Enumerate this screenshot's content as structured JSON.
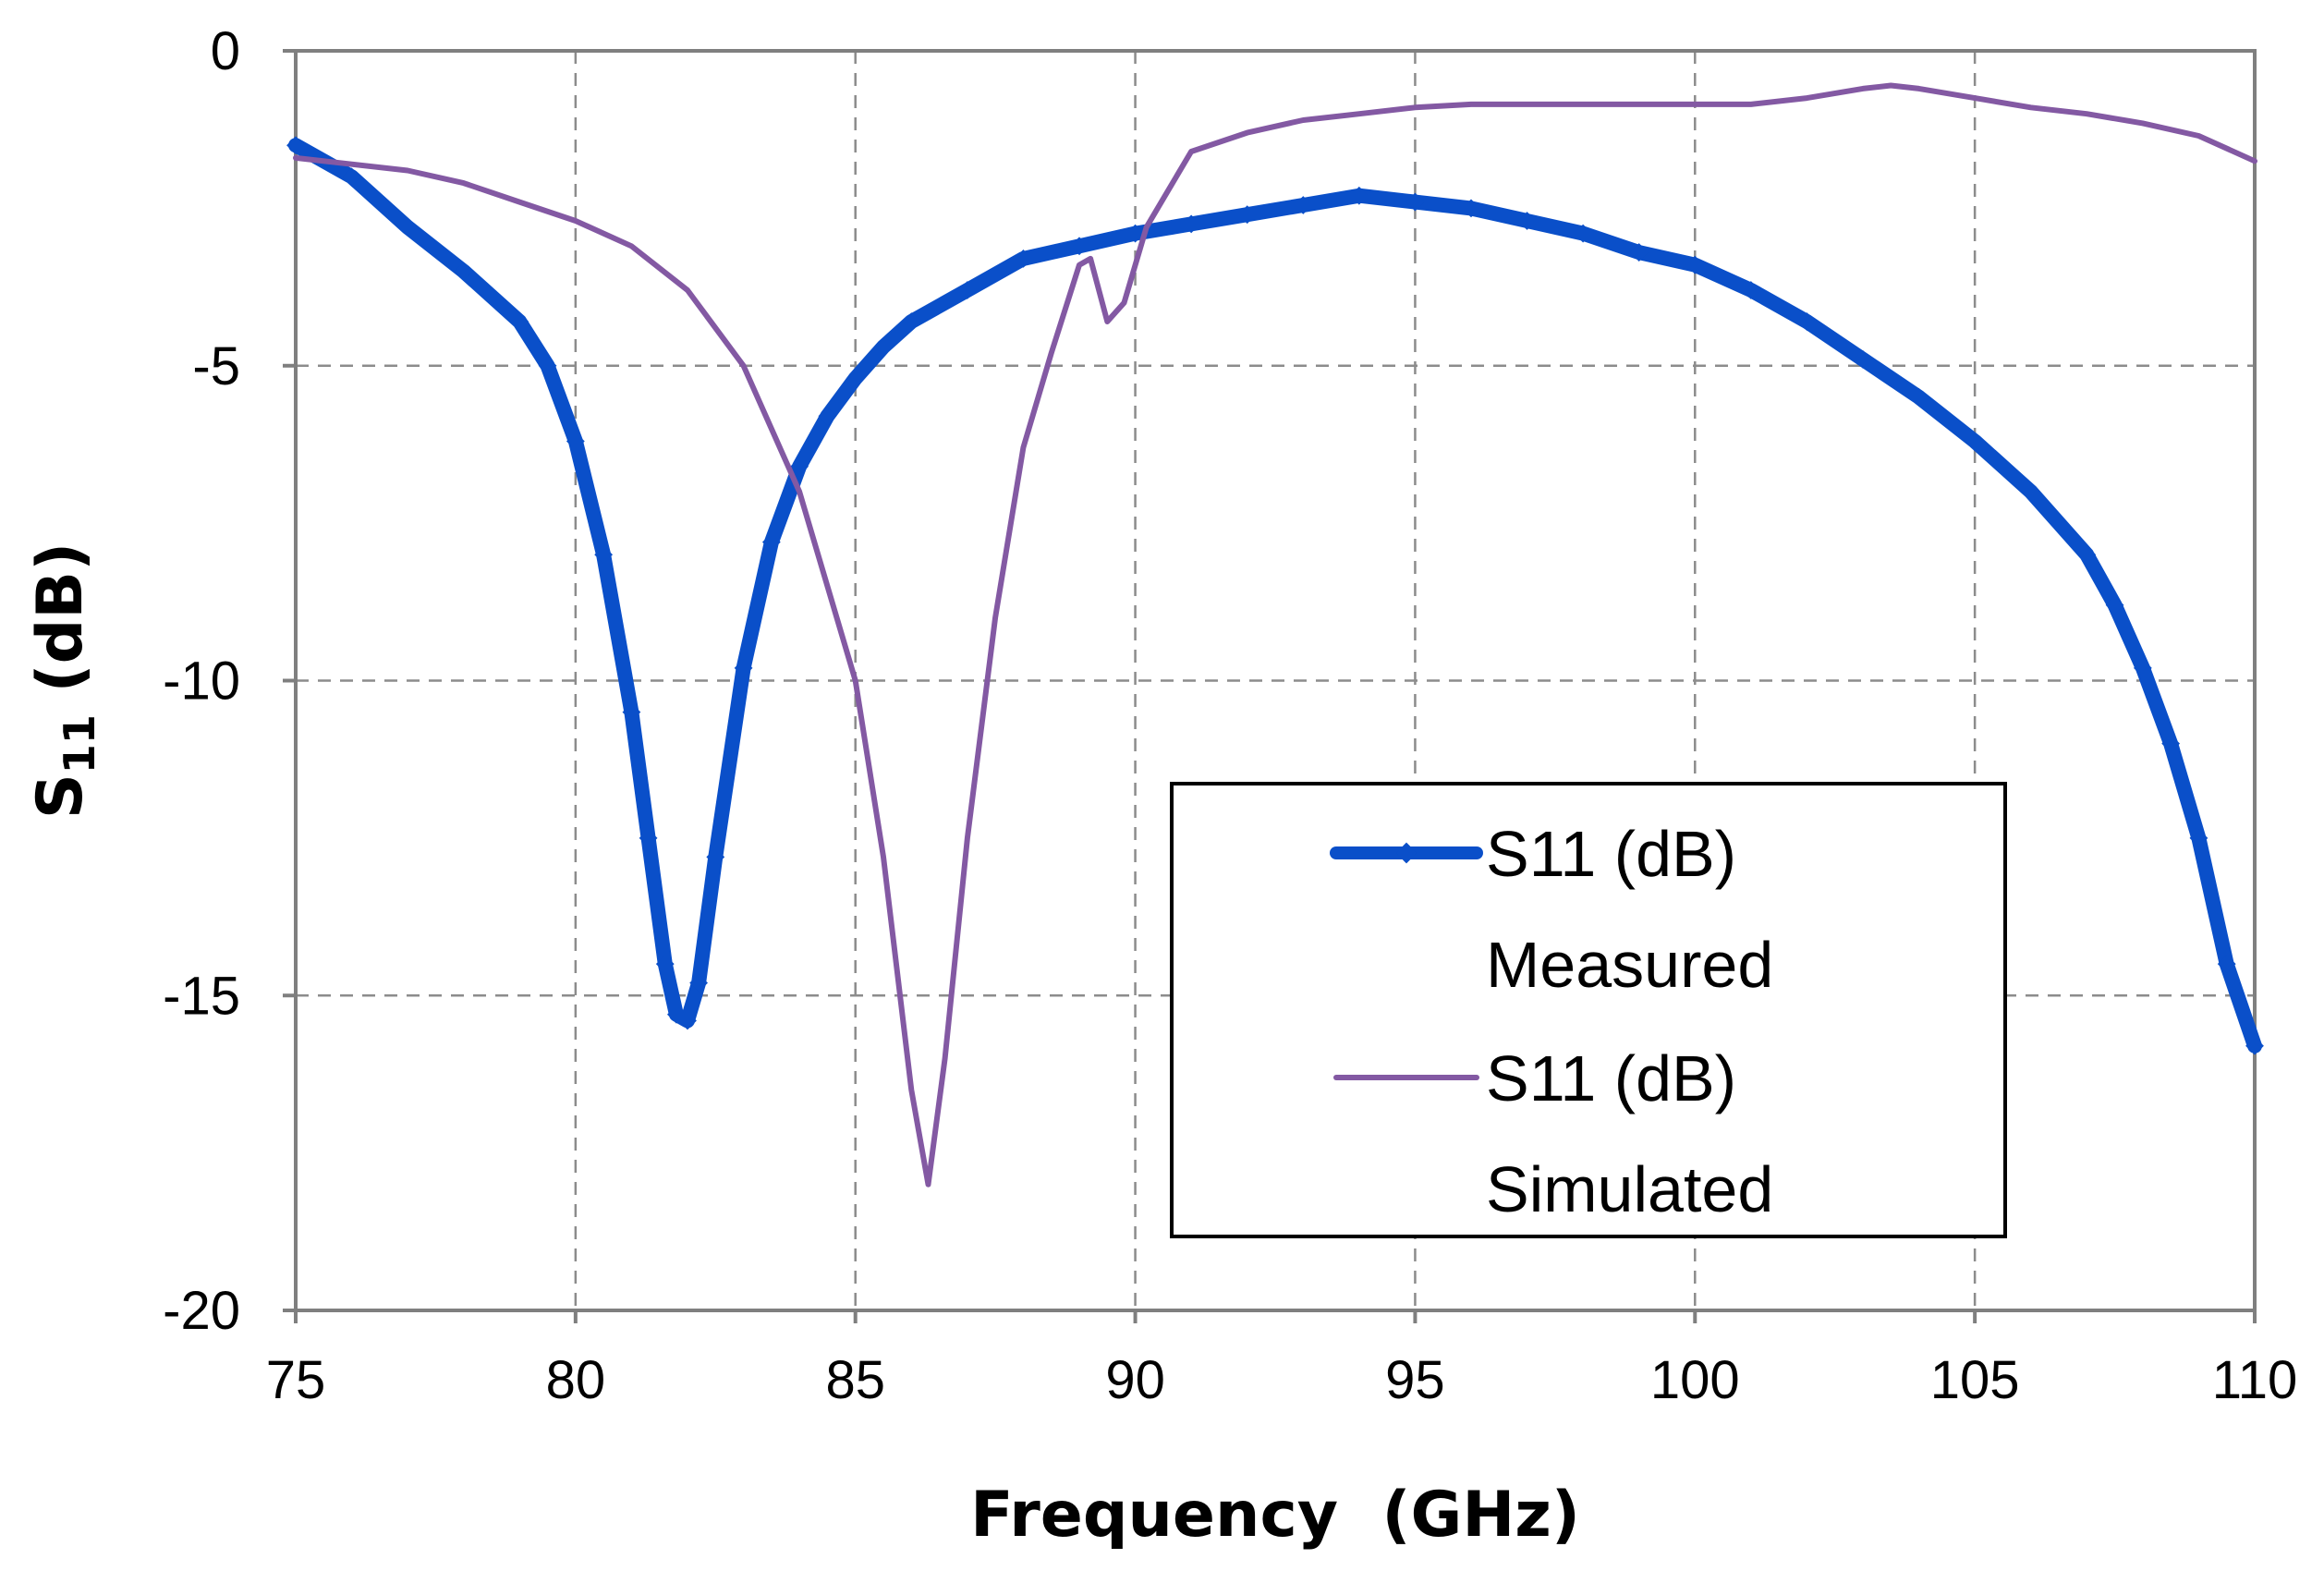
{
  "chart_data": {
    "type": "line",
    "title": "",
    "xlabel": "Frequency  (GHz)",
    "ylabel": {
      "main": "S",
      "sub": "11",
      "unit": " (dB)"
    },
    "xlim": [
      75,
      110
    ],
    "ylim": [
      -20,
      0
    ],
    "xticks": [
      75,
      80,
      85,
      90,
      95,
      100,
      105,
      110
    ],
    "yticks": [
      0,
      -5,
      -10,
      -15,
      -20
    ],
    "xtick_labels": [
      "75",
      "80",
      "85",
      "90",
      "95",
      "100",
      "105",
      "110"
    ],
    "ytick_labels": [
      "0",
      "-5",
      "-10",
      "-15",
      "-20"
    ],
    "grid": true,
    "legend_position": "lower-right",
    "series": [
      {
        "name": "S11 (dB) Measured",
        "legend_lines": [
          "S11 (dB)",
          "Measured"
        ],
        "color": "#0a4fc9",
        "style": "thick-marker",
        "x": [
          75,
          76,
          77,
          78,
          79,
          79.5,
          80,
          80.5,
          81,
          81.3,
          81.6,
          81.8,
          82,
          82.2,
          82.5,
          83,
          83.5,
          84,
          84.5,
          85,
          85.5,
          86,
          87,
          88,
          89,
          90,
          91,
          92,
          93,
          94,
          95,
          96,
          97,
          98,
          99,
          100,
          101,
          102,
          103,
          104,
          105,
          106,
          107,
          107.5,
          108,
          108.5,
          109,
          109.5,
          110
        ],
        "y": [
          -1.5,
          -2.0,
          -2.8,
          -3.5,
          -4.3,
          -5.0,
          -6.2,
          -8.0,
          -10.5,
          -12.5,
          -14.5,
          -15.3,
          -15.4,
          -14.8,
          -12.8,
          -9.8,
          -7.8,
          -6.6,
          -5.8,
          -5.2,
          -4.7,
          -4.3,
          -3.8,
          -3.3,
          -3.1,
          -2.9,
          -2.75,
          -2.6,
          -2.45,
          -2.3,
          -2.4,
          -2.5,
          -2.7,
          -2.9,
          -3.2,
          -3.4,
          -3.8,
          -4.3,
          -4.9,
          -5.5,
          -6.2,
          -7.0,
          -8.0,
          -8.8,
          -9.8,
          -11.0,
          -12.5,
          -14.5,
          -15.8
        ]
      },
      {
        "name": "S11 (dB) Simulated",
        "legend_lines": [
          "S11 (dB)",
          "Simulated"
        ],
        "color": "#8359a3",
        "style": "line",
        "x": [
          75,
          76,
          77,
          78,
          79,
          80,
          81,
          82,
          83,
          84,
          85,
          85.5,
          86,
          86.3,
          86.6,
          87,
          87.5,
          88,
          88.5,
          89,
          89.2,
          89.5,
          89.8,
          90.2,
          90.6,
          91,
          92,
          93,
          94,
          95,
          96,
          97,
          98,
          99,
          100,
          101,
          102,
          103,
          103.5,
          104,
          105,
          106,
          107,
          108,
          109,
          110
        ],
        "y": [
          -1.7,
          -1.8,
          -1.9,
          -2.1,
          -2.4,
          -2.7,
          -3.1,
          -3.8,
          -5.0,
          -7.0,
          -10.0,
          -12.8,
          -16.5,
          -18.0,
          -16.0,
          -12.5,
          -9.0,
          -6.3,
          -4.8,
          -3.4,
          -3.3,
          -4.3,
          -4.0,
          -2.8,
          -2.2,
          -1.6,
          -1.3,
          -1.1,
          -1.0,
          -0.9,
          -0.85,
          -0.85,
          -0.85,
          -0.85,
          -0.85,
          -0.85,
          -0.75,
          -0.6,
          -0.55,
          -0.6,
          -0.75,
          -0.9,
          -1.0,
          -1.15,
          -1.35,
          -1.75
        ]
      }
    ]
  }
}
